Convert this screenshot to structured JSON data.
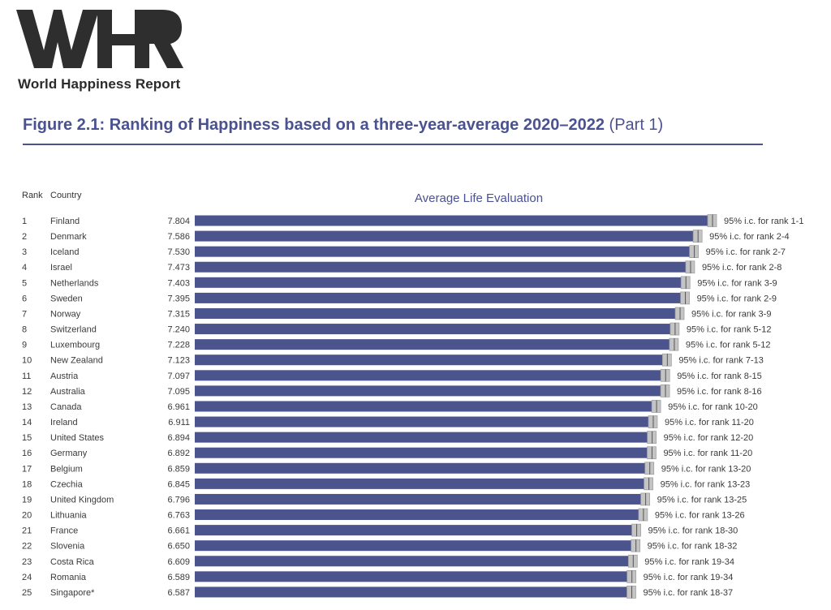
{
  "brand": {
    "name": "World Happiness Report",
    "logo_text": "WHR"
  },
  "figure": {
    "title": "Figure 2.1: Ranking of Happiness based on a three-year-average 2020–2022",
    "part": "(Part 1)"
  },
  "colors": {
    "accent": "#4a5290",
    "bar": "#4c548e",
    "ci": "#c4c4c4",
    "text": "#3a3a3a"
  },
  "chart_data": {
    "type": "bar",
    "orientation": "horizontal",
    "title": "Average Life Evaluation",
    "column_headers": {
      "rank": "Rank",
      "country": "Country"
    },
    "ranks": [
      1,
      2,
      3,
      4,
      5,
      6,
      7,
      8,
      9,
      10,
      11,
      12,
      13,
      14,
      15,
      16,
      17,
      18,
      19,
      20,
      21,
      22,
      23,
      24,
      25
    ],
    "categories": [
      "Finland",
      "Denmark",
      "Iceland",
      "Israel",
      "Netherlands",
      "Sweden",
      "Norway",
      "Switzerland",
      "Luxembourg",
      "New Zealand",
      "Austria",
      "Australia",
      "Canada",
      "Ireland",
      "United States",
      "Germany",
      "Belgium",
      "Czechia",
      "United Kingdom",
      "Lithuania",
      "France",
      "Slovenia",
      "Costa Rica",
      "Romania",
      "Singapore*"
    ],
    "values": [
      7.804,
      7.586,
      7.53,
      7.473,
      7.403,
      7.395,
      7.315,
      7.24,
      7.228,
      7.123,
      7.097,
      7.095,
      6.961,
      6.911,
      6.894,
      6.892,
      6.859,
      6.845,
      6.796,
      6.763,
      6.661,
      6.65,
      6.609,
      6.589,
      6.587
    ],
    "value_labels": [
      "7.804",
      "7.586",
      "7.530",
      "7.473",
      "7.403",
      "7.395",
      "7.315",
      "7.240",
      "7.228",
      "7.123",
      "7.097",
      "7.095",
      "6.961",
      "6.911",
      "6.894",
      "6.892",
      "6.859",
      "6.845",
      "6.796",
      "6.763",
      "6.661",
      "6.650",
      "6.609",
      "6.589",
      "6.587"
    ],
    "ci_labels": [
      "95% i.c. for rank 1-1",
      "95% i.c. for rank 2-4",
      "95% i.c. for rank 2-7",
      "95% i.c. for rank 2-8",
      "95% i.c. for rank 3-9",
      "95% i.c. for rank 2-9",
      "95% i.c. for rank 3-9",
      "95% i.c. for rank 5-12",
      "95% i.c. for rank 5-12",
      "95% i.c. for rank 7-13",
      "95% i.c. for rank 8-15",
      "95% i.c. for rank 8-16",
      "95% i.c. for rank 10-20",
      "95% i.c. for rank 11-20",
      "95% i.c. for rank 12-20",
      "95% i.c. for rank 11-20",
      "95% i.c. for rank 13-20",
      "95% i.c. for rank 13-23",
      "95% i.c. for rank 13-25",
      "95% i.c. for rank 13-26",
      "95% i.c. for rank 18-30",
      "95% i.c. for rank 18-32",
      "95% i.c. for rank 19-34",
      "95% i.c. for rank 19-34",
      "95% i.c. for rank 18-37"
    ],
    "xlim": [
      0,
      7.804
    ],
    "grid": false,
    "legend": "none"
  }
}
